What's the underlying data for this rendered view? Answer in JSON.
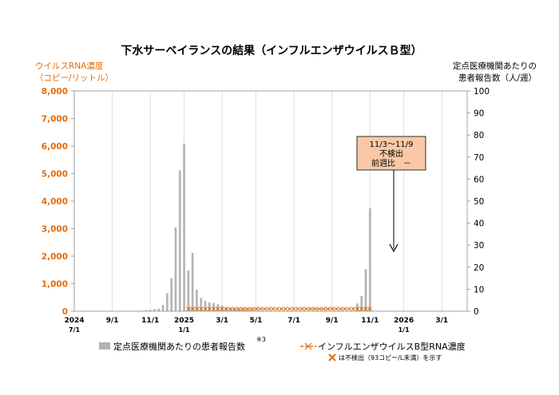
{
  "chart_data": {
    "type": "bar",
    "title": "下水サーベイランスの結果（インフルエンザウイルスＢ型）",
    "left_axis": {
      "label_lines": [
        "ウイルスRNA濃度",
        "（コピー/リットル）"
      ],
      "ticks": [
        "0",
        "1,000",
        "2,000",
        "3,000",
        "4,000",
        "5,000",
        "6,000",
        "7,000",
        "8,000"
      ],
      "ylim": [
        0,
        8000
      ],
      "color": "#E46C0A"
    },
    "right_axis": {
      "label_lines": [
        "定点医療機関あたりの",
        "患者報告数（人/週）"
      ],
      "ticks": [
        "0",
        "10",
        "20",
        "30",
        "40",
        "50",
        "60",
        "70",
        "80",
        "90",
        "100"
      ],
      "ylim": [
        0,
        100
      ]
    },
    "x_axis": {
      "ticks": [
        {
          "week": 0,
          "line1": "2024",
          "line2": "7/1"
        },
        {
          "week": 9,
          "line1": "9/1",
          "line2": ""
        },
        {
          "week": 18,
          "line1": "11/1",
          "line2": ""
        },
        {
          "week": 26,
          "line1": "2025",
          "line2": "1/1"
        },
        {
          "week": 35,
          "line1": "3/1",
          "line2": ""
        },
        {
          "week": 43,
          "line1": "5/1",
          "line2": ""
        },
        {
          "week": 52,
          "line1": "7/1",
          "line2": ""
        },
        {
          "week": 61,
          "line1": "9/1",
          "line2": ""
        },
        {
          "week": 70,
          "line1": "11/1",
          "line2": ""
        },
        {
          "week": 78,
          "line1": "2026",
          "line2": "1/1"
        },
        {
          "week": 87,
          "line1": "3/1",
          "line2": ""
        }
      ],
      "xlim": [
        0,
        93
      ]
    },
    "series": [
      {
        "name": "定点医療機関あたりの患者報告数",
        "axis": "right",
        "color": "#B3B3B3",
        "x": [
          5,
          6,
          15,
          16,
          17,
          18,
          19,
          20,
          21,
          22,
          23,
          24,
          25,
          26,
          27,
          28,
          29,
          30,
          31,
          32,
          33,
          34,
          35,
          36,
          37,
          38,
          39,
          40,
          41,
          42,
          67,
          68,
          69,
          70
        ],
        "values": [
          0.2,
          0.1,
          0.2,
          0.3,
          0.5,
          0.6,
          0.9,
          1.2,
          2.8,
          8.2,
          15,
          38,
          64,
          76,
          18.5,
          26.5,
          9.8,
          6.0,
          4.7,
          4.0,
          3.7,
          3.2,
          2.6,
          1.8,
          1.3,
          1.1,
          0.9,
          0.7,
          0.6,
          0.5,
          3.5,
          6.9,
          19.1,
          46.7
        ]
      },
      {
        "name": "インフルエンザウイルスB型RNA濃度",
        "axis": "left",
        "color": "#E46C0A",
        "x_start": 27,
        "x_end": 70,
        "all_not_detected": true
      }
    ],
    "legend": {
      "bar_label": "定点医療機関あたりの患者報告数",
      "footnote_mark": "※3",
      "line_label": "インフルエンザウイルスB型RNA濃度",
      "not_detected_note": "は不検出（93コピー/L未満）を示す"
    },
    "annotation": {
      "lines": [
        "11/3～11/9",
        "不検出",
        "前週比　－"
      ],
      "fill": "#F9C9A7",
      "target_week": 70
    }
  }
}
